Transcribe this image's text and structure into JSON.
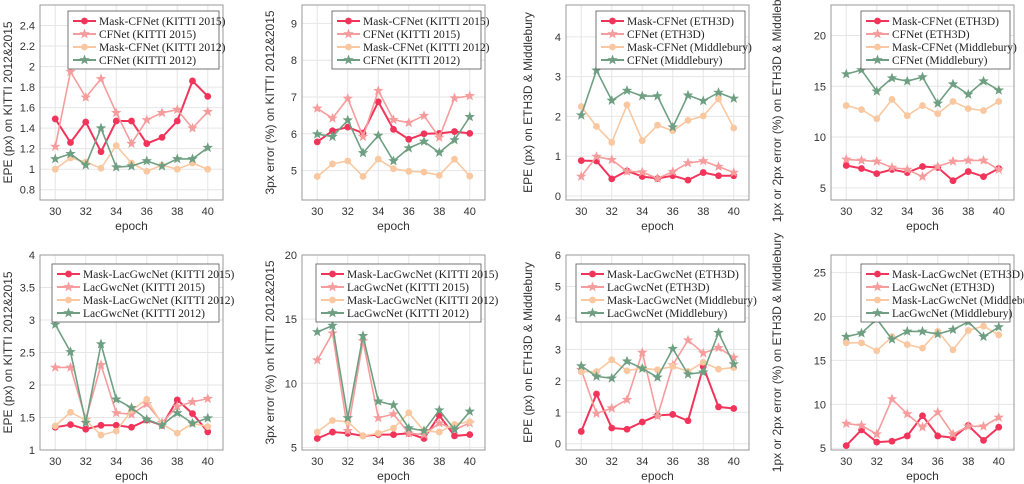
{
  "colors": {
    "s0": "#f2345a",
    "s1": "#f79c9c",
    "s2": "#f9c8a0",
    "s3": "#6f9f82"
  },
  "chart_data": [
    {
      "type": "line",
      "xlabel": "epoch",
      "ylabel": "EPE (px) on KITTI 2012&2015",
      "ylim": [
        0.7,
        2.6
      ],
      "yticks": [
        "0.8",
        "1",
        "1.2",
        "1.4",
        "1.6",
        "1.8",
        "2",
        "2.2",
        "2.4"
      ],
      "xticks": [
        "30",
        "32",
        "34",
        "36",
        "38",
        "40"
      ],
      "grid": true,
      "legend": "top-right",
      "x": [
        30,
        31,
        32,
        33,
        34,
        35,
        36,
        37,
        38,
        39,
        40
      ],
      "series": [
        {
          "name": "Mask-CFNet (KITTI 2015)",
          "marker": "circle",
          "values": [
            1.49,
            1.26,
            1.46,
            1.17,
            1.47,
            1.47,
            1.25,
            1.31,
            1.47,
            1.86,
            1.71
          ]
        },
        {
          "name": "CFNet (KITTI 2015)",
          "marker": "star",
          "values": [
            1.22,
            1.95,
            1.7,
            1.88,
            1.55,
            1.25,
            1.48,
            1.55,
            1.58,
            1.4,
            1.56
          ]
        },
        {
          "name": "Mask-CFNet (KITTI 2012)",
          "marker": "circle",
          "values": [
            1.0,
            1.11,
            1.07,
            1.01,
            1.23,
            1.06,
            0.98,
            1.04,
            1.0,
            1.06,
            1.0
          ]
        },
        {
          "name": "CFNet (KITTI 2012)",
          "marker": "star",
          "values": [
            1.1,
            1.15,
            1.04,
            1.4,
            1.02,
            1.03,
            1.08,
            1.03,
            1.1,
            1.1,
            1.21
          ]
        }
      ]
    },
    {
      "type": "line",
      "xlabel": "epoch",
      "ylabel": "3px error (%) on KITTI 2012&2015",
      "ylim": [
        4.2,
        9.5
      ],
      "yticks": [
        "5",
        "6",
        "7",
        "8",
        "9"
      ],
      "xticks": [
        "30",
        "32",
        "34",
        "36",
        "38",
        "40"
      ],
      "grid": true,
      "legend": "top-right",
      "x": [
        30,
        31,
        32,
        33,
        34,
        35,
        36,
        37,
        38,
        39,
        40
      ],
      "series": [
        {
          "name": "Mask-CFNet (KITTI 2015)",
          "marker": "circle",
          "values": [
            5.78,
            6.08,
            6.18,
            6.02,
            6.87,
            6.12,
            5.85,
            6.0,
            6.01,
            6.06,
            6.01
          ]
        },
        {
          "name": "CFNet (KITTI 2015)",
          "marker": "star",
          "values": [
            6.69,
            6.42,
            6.96,
            5.92,
            7.17,
            6.38,
            6.3,
            6.49,
            5.9,
            6.97,
            7.03
          ]
        },
        {
          "name": "Mask-CFNet (KITTI 2012)",
          "marker": "circle",
          "values": [
            4.84,
            5.18,
            5.26,
            4.84,
            5.31,
            5.05,
            4.98,
            4.96,
            4.87,
            5.31,
            4.85
          ]
        },
        {
          "name": "CFNet (KITTI 2012)",
          "marker": "star",
          "values": [
            5.99,
            5.92,
            6.37,
            5.48,
            5.95,
            5.26,
            5.61,
            5.79,
            5.49,
            5.83,
            6.46
          ]
        }
      ]
    },
    {
      "type": "line",
      "xlabel": "epoch",
      "ylabel": "EPE (px) on ETH3D & Middlebury",
      "ylim": [
        -0.1,
        4.8
      ],
      "yticks": [
        "0",
        "1",
        "2",
        "3",
        "4"
      ],
      "xticks": [
        "30",
        "32",
        "34",
        "36",
        "38",
        "40"
      ],
      "grid": true,
      "legend": "top-right",
      "x": [
        30,
        31,
        32,
        33,
        34,
        35,
        36,
        37,
        38,
        39,
        40
      ],
      "series": [
        {
          "name": "Mask-CFNet (ETH3D)",
          "marker": "circle",
          "values": [
            0.89,
            0.88,
            0.43,
            0.63,
            0.49,
            0.44,
            0.51,
            0.4,
            0.59,
            0.51,
            0.51
          ]
        },
        {
          "name": "CFNet (ETH3D)",
          "marker": "star",
          "values": [
            0.49,
            0.99,
            0.91,
            0.62,
            0.6,
            0.44,
            0.61,
            0.83,
            0.88,
            0.74,
            0.59
          ]
        },
        {
          "name": "Mask-CFNet (Middlebury)",
          "marker": "circle",
          "values": [
            2.25,
            1.75,
            1.35,
            2.29,
            1.39,
            1.78,
            1.64,
            1.9,
            2.01,
            2.44,
            1.71
          ]
        },
        {
          "name": "CFNet (Middlebury)",
          "marker": "star",
          "values": [
            2.03,
            3.16,
            2.4,
            2.65,
            2.51,
            2.51,
            1.73,
            2.53,
            2.39,
            2.6,
            2.45
          ]
        }
      ]
    },
    {
      "type": "line",
      "xlabel": "epoch",
      "ylabel": "1px or 2px error (%) on ETH3D & Middlebury",
      "ylim": [
        3.8,
        23
      ],
      "yticks": [
        "5",
        "10",
        "15",
        "20"
      ],
      "xticks": [
        "30",
        "32",
        "34",
        "36",
        "38",
        "40"
      ],
      "grid": true,
      "legend": "top-right",
      "x": [
        30,
        31,
        32,
        33,
        34,
        35,
        36,
        37,
        38,
        39,
        40
      ],
      "series": [
        {
          "name": "Mask-CFNet (ETH3D)",
          "marker": "circle",
          "values": [
            7.2,
            6.9,
            6.4,
            6.8,
            6.5,
            7.1,
            7.0,
            5.7,
            6.6,
            6.1,
            6.9
          ]
        },
        {
          "name": "CFNet (ETH3D)",
          "marker": "star",
          "values": [
            7.8,
            7.7,
            7.6,
            7.0,
            6.8,
            6.1,
            7.1,
            7.6,
            7.7,
            7.7,
            6.8
          ]
        },
        {
          "name": "Mask-CFNet (Middlebury)",
          "marker": "circle",
          "values": [
            13.1,
            12.7,
            11.8,
            13.7,
            12.1,
            13.1,
            12.3,
            13.5,
            12.8,
            12.6,
            13.5
          ]
        },
        {
          "name": "CFNet (Middlebury)",
          "marker": "star",
          "values": [
            16.2,
            16.6,
            14.5,
            15.8,
            15.5,
            15.9,
            13.3,
            15.2,
            14.2,
            15.5,
            14.6
          ]
        }
      ]
    },
    {
      "type": "line",
      "xlabel": "epoch",
      "ylabel": "EPE (px) on KITTI 2012&2015",
      "ylim": [
        1,
        4
      ],
      "yticks": [
        "1",
        "1.5",
        "2",
        "2.5",
        "3",
        "3.5",
        "4"
      ],
      "xticks": [
        "30",
        "32",
        "34",
        "36",
        "38",
        "40"
      ],
      "grid": true,
      "legend": "top-right",
      "x": [
        30,
        31,
        32,
        33,
        34,
        35,
        36,
        37,
        38,
        39,
        40
      ],
      "series": [
        {
          "name": "Mask-LacGwcNet (KITTI 2015)",
          "marker": "circle",
          "values": [
            1.35,
            1.39,
            1.32,
            1.38,
            1.38,
            1.35,
            1.46,
            1.38,
            1.77,
            1.56,
            1.28
          ]
        },
        {
          "name": "LacGwcNet (KITTI 2015)",
          "marker": "star",
          "values": [
            2.27,
            2.27,
            1.47,
            2.31,
            1.57,
            1.55,
            1.71,
            1.42,
            1.67,
            1.74,
            1.79
          ]
        },
        {
          "name": "Mask-LacGwcNet (KITTI 2012)",
          "marker": "circle",
          "values": [
            1.37,
            1.58,
            1.46,
            1.23,
            1.29,
            1.61,
            1.78,
            1.4,
            1.26,
            1.41,
            1.36
          ]
        },
        {
          "name": "LacGwcNet (KITTI 2012)",
          "marker": "star",
          "values": [
            2.93,
            2.51,
            1.42,
            2.63,
            1.78,
            1.65,
            1.47,
            1.38,
            1.57,
            1.41,
            1.49
          ]
        }
      ]
    },
    {
      "type": "line",
      "xlabel": "epoch",
      "ylabel": "3px error (%) on KITTI 2012&2015",
      "ylim": [
        4.8,
        20
      ],
      "yticks": [
        "5",
        "10",
        "15",
        "20"
      ],
      "xticks": [
        "30",
        "32",
        "34",
        "36",
        "38",
        "40"
      ],
      "grid": true,
      "legend": "top-right",
      "x": [
        30,
        31,
        32,
        33,
        34,
        35,
        36,
        37,
        38,
        39,
        40
      ],
      "series": [
        {
          "name": "Mask-LacGwcNet (KITTI 2015)",
          "marker": "circle",
          "values": [
            5.7,
            6.2,
            6.1,
            5.9,
            6.0,
            6.0,
            6.1,
            5.7,
            7.5,
            5.9,
            6.0
          ]
        },
        {
          "name": "LacGwcNet (KITTI 2015)",
          "marker": "star",
          "values": [
            11.8,
            13.9,
            6.3,
            13.3,
            7.3,
            7.6,
            6.1,
            6.0,
            6.9,
            6.4,
            6.9
          ]
        },
        {
          "name": "Mask-LacGwcNet (KITTI 2012)",
          "marker": "circle",
          "values": [
            6.2,
            7.1,
            7.0,
            5.9,
            6.1,
            6.5,
            7.7,
            6.3,
            6.2,
            6.8,
            7.0
          ]
        },
        {
          "name": "LacGwcNet (KITTI 2012)",
          "marker": "star",
          "values": [
            14.0,
            14.5,
            7.3,
            13.7,
            8.6,
            8.3,
            6.5,
            6.3,
            7.9,
            6.4,
            7.8
          ]
        }
      ]
    },
    {
      "type": "line",
      "xlabel": "epoch",
      "ylabel": "EPE (px) on ETH3D & Middlebury",
      "ylim": [
        -0.2,
        6
      ],
      "yticks": [
        "0",
        "1",
        "2",
        "3",
        "4",
        "5",
        "6"
      ],
      "xticks": [
        "30",
        "32",
        "34",
        "36",
        "38",
        "40"
      ],
      "grid": true,
      "legend": "top-right",
      "x": [
        30,
        31,
        32,
        33,
        34,
        35,
        36,
        37,
        38,
        39,
        40
      ],
      "series": [
        {
          "name": "Mask-LacGwcNet (ETH3D)",
          "marker": "circle",
          "values": [
            0.39,
            1.58,
            0.5,
            0.46,
            0.69,
            0.9,
            0.93,
            0.73,
            2.45,
            1.17,
            1.12
          ]
        },
        {
          "name": "LacGwcNet (ETH3D)",
          "marker": "star",
          "values": [
            2.35,
            0.96,
            1.13,
            1.4,
            2.9,
            0.88,
            2.5,
            3.29,
            2.88,
            3.05,
            2.74
          ]
        },
        {
          "name": "Mask-LacGwcNet (Middlebury)",
          "marker": "circle",
          "values": [
            2.29,
            2.29,
            2.67,
            2.32,
            2.4,
            2.35,
            2.46,
            2.3,
            2.59,
            2.37,
            2.42
          ]
        },
        {
          "name": "LacGwcNet (Middlebury)",
          "marker": "star",
          "values": [
            2.47,
            2.14,
            2.08,
            2.62,
            2.39,
            2.11,
            3.02,
            2.21,
            2.27,
            3.53,
            2.53
          ]
        }
      ]
    },
    {
      "type": "line",
      "xlabel": "epoch",
      "ylabel": "1px or 2px error (%) on ETH3D & Middlebury",
      "ylim": [
        4.8,
        27
      ],
      "yticks": [
        "5",
        "10",
        "15",
        "20",
        "25"
      ],
      "xticks": [
        "30",
        "32",
        "34",
        "36",
        "38",
        "40"
      ],
      "grid": true,
      "legend": "top-right",
      "x": [
        30,
        31,
        32,
        33,
        34,
        35,
        36,
        37,
        38,
        39,
        40
      ],
      "series": [
        {
          "name": "Mask-LacGwcNet (ETH3D)",
          "marker": "circle",
          "values": [
            5.3,
            7.1,
            5.7,
            5.8,
            6.4,
            8.7,
            6.4,
            6.2,
            7.6,
            5.9,
            7.4
          ]
        },
        {
          "name": "LacGwcNet (ETH3D)",
          "marker": "star",
          "values": [
            7.8,
            7.6,
            6.6,
            10.6,
            8.9,
            7.4,
            9.1,
            6.6,
            7.5,
            7.5,
            8.5
          ]
        },
        {
          "name": "Mask-LacGwcNet (Middlebury)",
          "marker": "circle",
          "values": [
            17.0,
            17.0,
            16.1,
            17.7,
            16.8,
            16.4,
            18.3,
            16.2,
            18.4,
            18.9,
            17.9
          ]
        },
        {
          "name": "LacGwcNet (Middlebury)",
          "marker": "star",
          "values": [
            17.7,
            18.1,
            19.7,
            17.4,
            18.3,
            18.3,
            18.0,
            18.5,
            19.4,
            17.7,
            18.8
          ]
        }
      ]
    }
  ]
}
